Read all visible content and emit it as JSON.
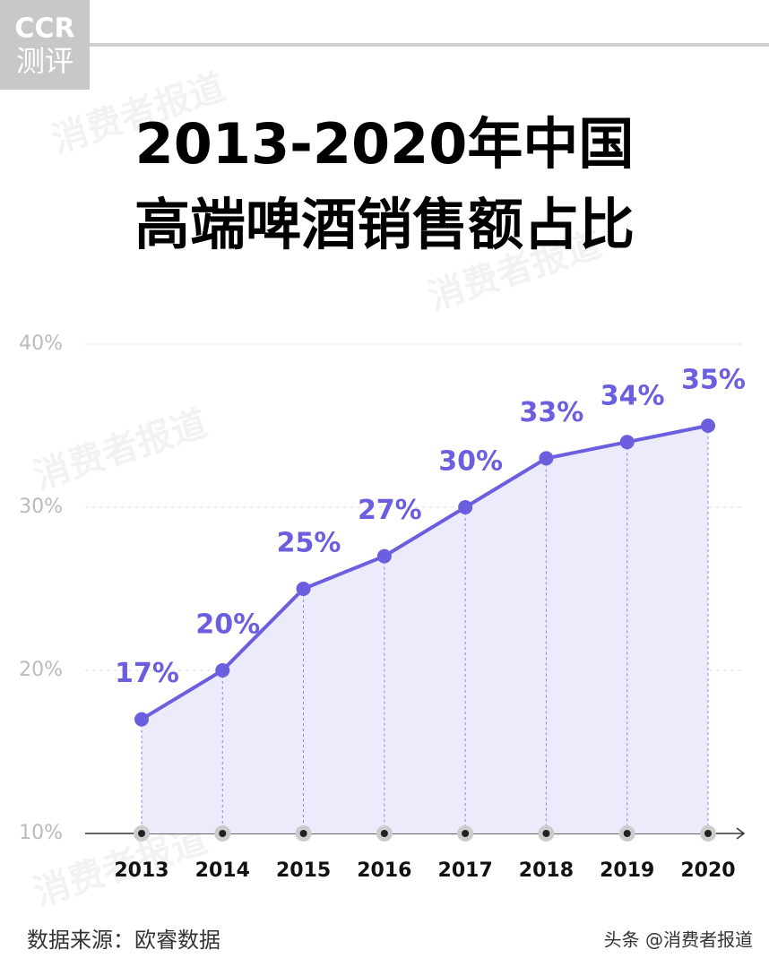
{
  "logo": {
    "top": "CCR",
    "bottom": "测评"
  },
  "watermark": "消费者报道",
  "footer": {
    "source": "数据来源：欧睿数据",
    "credit": "头条 @消费者报道"
  },
  "chart_data": {
    "type": "line",
    "title": [
      "2013-2020年中国",
      "高端啤酒销售额占比"
    ],
    "categories": [
      "2013",
      "2014",
      "2015",
      "2016",
      "2017",
      "2018",
      "2019",
      "2020"
    ],
    "series": [
      {
        "name": "高端啤酒销售额占比",
        "color": "#6b5fe0",
        "values": [
          17,
          20,
          25,
          27,
          30,
          33,
          34,
          35
        ],
        "value_labels": [
          "17%",
          "20%",
          "25%",
          "27%",
          "30%",
          "33%",
          "34%",
          "35%"
        ]
      }
    ],
    "ylim": [
      10,
      40
    ],
    "yticks": [
      {
        "value": 10,
        "label": "10%"
      },
      {
        "value": 20,
        "label": "20%"
      },
      {
        "value": 30,
        "label": "30%"
      },
      {
        "value": 40,
        "label": "40%"
      }
    ],
    "grid": true,
    "area_color": "#ecebfb"
  }
}
